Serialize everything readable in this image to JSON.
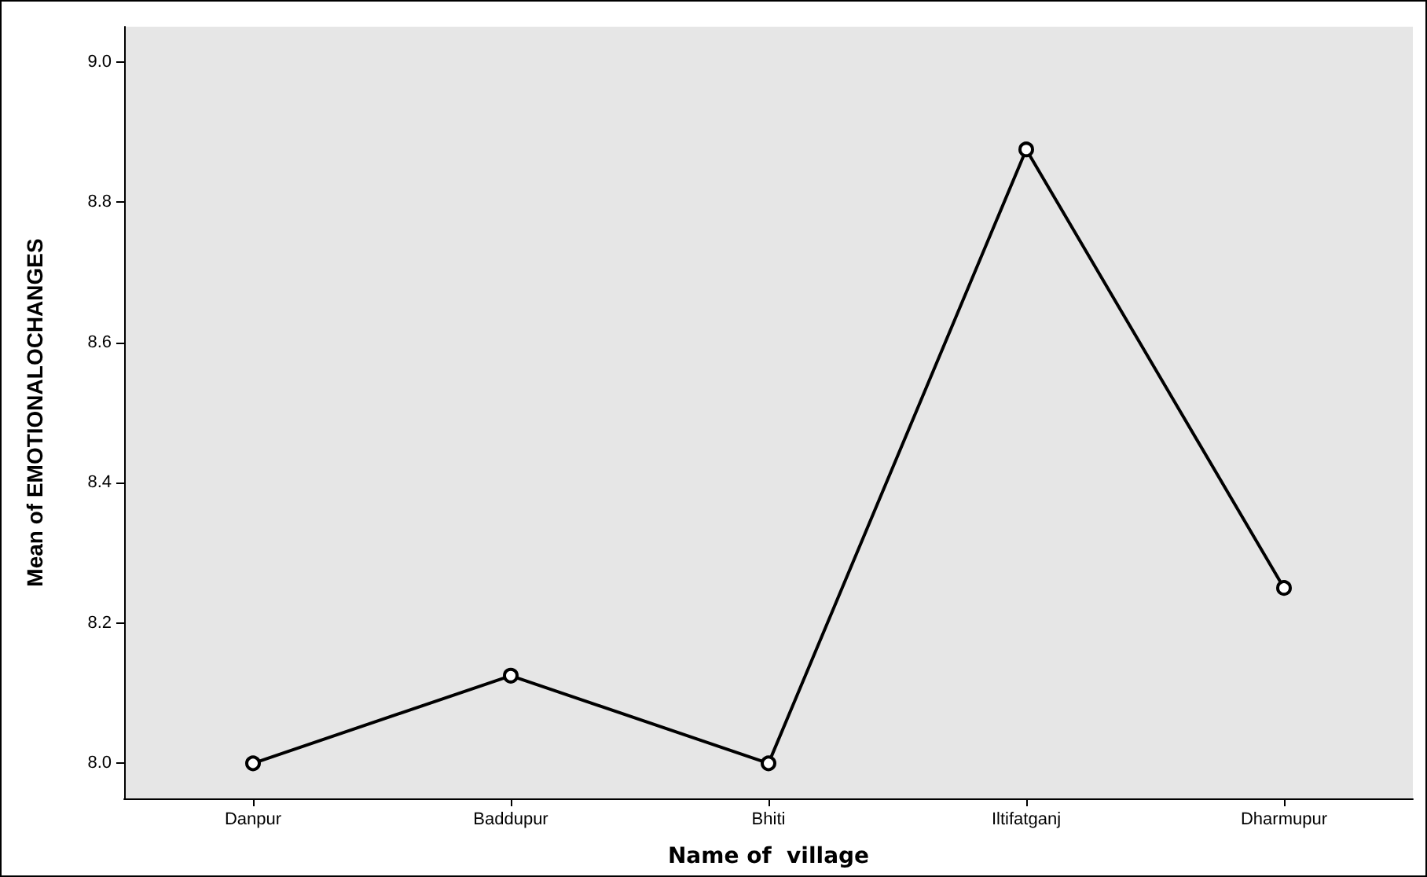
{
  "chart_data": {
    "type": "line",
    "xlabel": "Name of  village",
    "ylabel": "Mean of EMOTIONALOCHANGES",
    "categories": [
      "Danpur",
      "Baddupur",
      "Bhiti",
      "Iltifatganj",
      "Dharmupur"
    ],
    "series": [
      {
        "color": "#000000",
        "values": [
          8.0,
          8.125,
          8.0,
          8.875,
          8.25
        ]
      }
    ],
    "ylim": [
      7.95,
      9.05
    ],
    "yticks": [
      {
        "value": 8,
        "label": "8.0"
      },
      {
        "value": 8.2,
        "label": "8.2"
      },
      {
        "value": 8.4,
        "label": "8.4"
      },
      {
        "value": 8.6,
        "label": "8.6"
      },
      {
        "value": 8.8,
        "label": "8.8"
      },
      {
        "value": 9,
        "label": "9.0"
      }
    ],
    "grid": false,
    "marker": "circle",
    "line_style": "solid"
  }
}
